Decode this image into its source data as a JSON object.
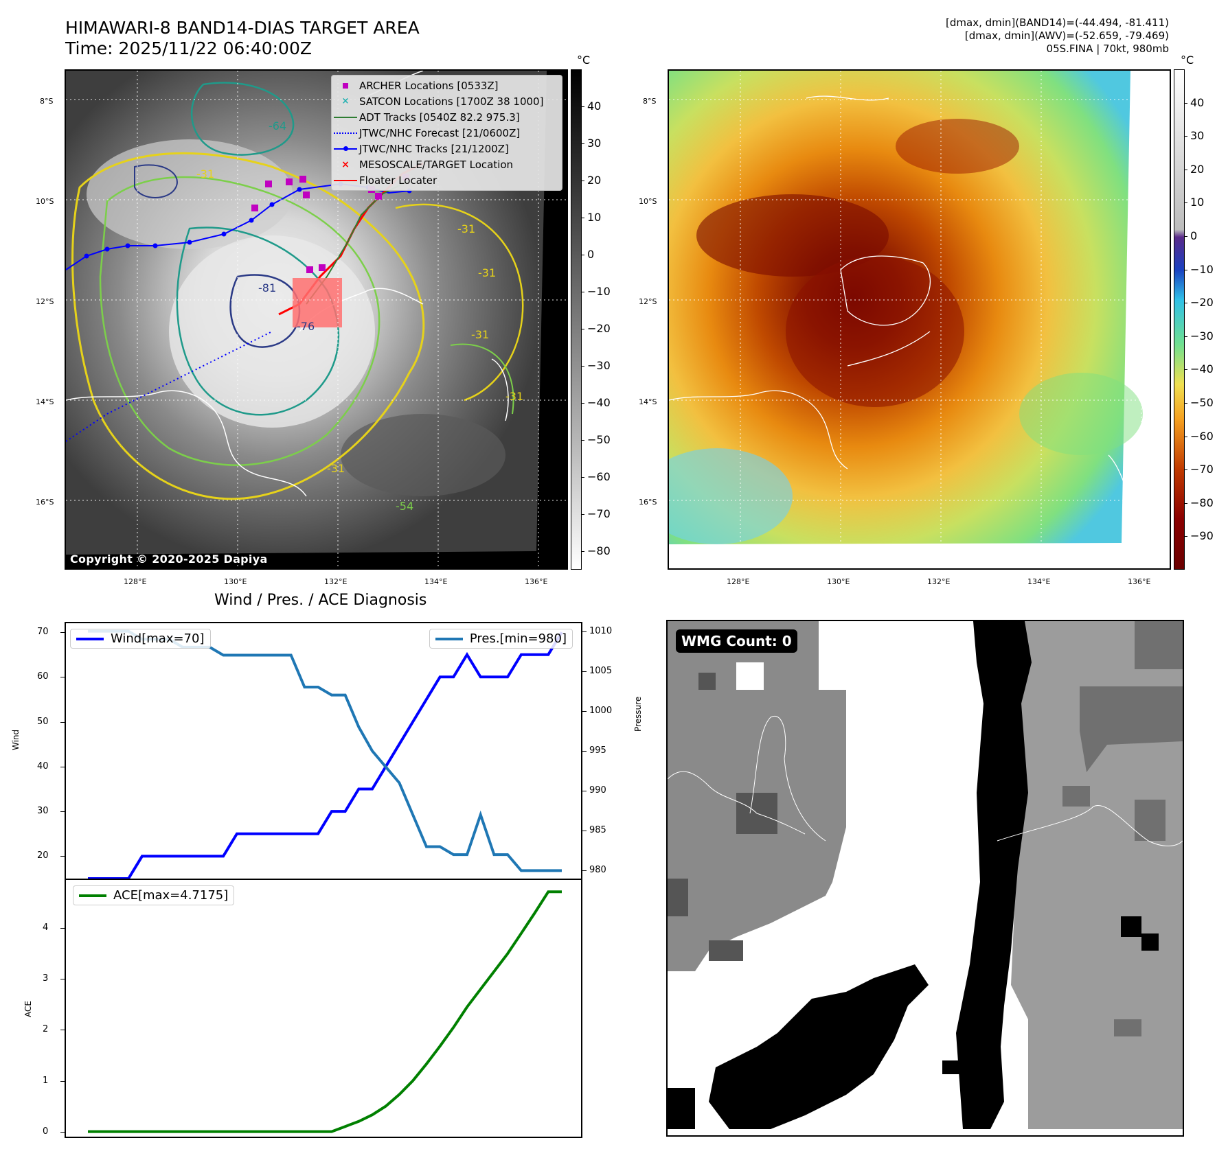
{
  "header": {
    "title_line1": "HIMAWARI-8 BAND14-DIAS TARGET AREA",
    "title_line2": "Time: 2025/11/22 06:40:00Z",
    "info_line1": "[dmax, dmin](BAND14)=(-44.494, -81.411)",
    "info_line2": "[dmax, dmin](AWV)=(-52.659, -79.469)",
    "info_line3": "05S.FINA | 70kt, 980mb"
  },
  "map_axes": {
    "lat_labels": [
      "8°S",
      "10°S",
      "12°S",
      "14°S",
      "16°S"
    ],
    "lon_labels": [
      "128°E",
      "130°E",
      "132°E",
      "134°E",
      "136°E"
    ]
  },
  "left_map": {
    "contour_labels": [
      "-64",
      "-31",
      "-81",
      "-76",
      "-31",
      "-31",
      "-54",
      "-31",
      "-31",
      "-31"
    ],
    "legend": [
      {
        "label": "ARCHER Locations [0533Z]",
        "color": "#c000c0",
        "symbol": "square"
      },
      {
        "label": "SATCON Locations [1700Z 38 1000]",
        "color": "#20b0b0",
        "symbol": "x"
      },
      {
        "label": "ADT Tracks [0540Z 82.2 975.3]",
        "color": "#2e7d32",
        "symbol": "line"
      },
      {
        "label": "JTWC/NHC Forecast [21/0600Z]",
        "color": "#0000ff",
        "symbol": "dotted"
      },
      {
        "label": "JTWC/NHC Tracks [21/1200Z]",
        "color": "#0000ff",
        "symbol": "dotline"
      },
      {
        "label": "MESOSCALE/TARGET Location",
        "color": "#ff0000",
        "symbol": "x"
      },
      {
        "label": "Floater Locater",
        "color": "#ff0000",
        "symbol": "line"
      }
    ],
    "copyright": "Copyright © 2020-2025 Dapiya",
    "colorbar": {
      "unit": "°C",
      "ticks": [
        "40",
        "30",
        "20",
        "10",
        "0",
        "−10",
        "−20",
        "−30",
        "−40",
        "−50",
        "−60",
        "−70",
        "−80"
      ],
      "range": [
        -85,
        50
      ]
    }
  },
  "right_map": {
    "colorbar": {
      "unit": "°C",
      "ticks": [
        "40",
        "30",
        "20",
        "10",
        "0",
        "−10",
        "−20",
        "−30",
        "−40",
        "−50",
        "−60",
        "−70",
        "−80",
        "−90"
      ],
      "range": [
        -100,
        50
      ]
    }
  },
  "chart_data": [
    {
      "type": "line",
      "title": "Wind / Pres. / ACE Diagnosis",
      "ylabel": "Wind",
      "y2label": "Pressure",
      "x": [
        0,
        1,
        2,
        3,
        4,
        5,
        6,
        7,
        8,
        9,
        10,
        11,
        12,
        13,
        14,
        15,
        16,
        17,
        18,
        19,
        20,
        21,
        22,
        23,
        24,
        25,
        26,
        27,
        28,
        29,
        30,
        31,
        32,
        33,
        34,
        35
      ],
      "series": [
        {
          "name": "Wind[max=70]",
          "axis": "left",
          "color": "#0000ff",
          "values": [
            15,
            15,
            15,
            15,
            20,
            20,
            20,
            20,
            20,
            20,
            20,
            25,
            25,
            25,
            25,
            25,
            25,
            25,
            30,
            30,
            35,
            35,
            40,
            45,
            50,
            55,
            60,
            60,
            65,
            60,
            60,
            60,
            65,
            65,
            65,
            70
          ]
        },
        {
          "name": "Pres.[min=980]",
          "axis": "right",
          "color": "#1f77b4",
          "values": [
            1010,
            1010,
            1010,
            1010,
            1009,
            1009,
            1009,
            1008,
            1008,
            1008,
            1007,
            1007,
            1007,
            1007,
            1007,
            1007,
            1003,
            1003,
            1002,
            1002,
            998,
            995,
            993,
            991,
            987,
            983,
            983,
            982,
            982,
            987,
            982,
            982,
            980,
            980,
            980,
            980
          ]
        }
      ],
      "ylim": [
        15,
        72
      ],
      "y2lim": [
        979,
        1011
      ],
      "yticks": [
        "70",
        "60",
        "50",
        "40",
        "30",
        "20"
      ],
      "y2ticks": [
        "1010",
        "1005",
        "1000",
        "995",
        "990",
        "985",
        "980"
      ]
    },
    {
      "type": "line",
      "ylabel": "ACE",
      "x": [
        0,
        1,
        2,
        3,
        4,
        5,
        6,
        7,
        8,
        9,
        10,
        11,
        12,
        13,
        14,
        15,
        16,
        17,
        18,
        19,
        20,
        21,
        22,
        23,
        24,
        25,
        26,
        27,
        28,
        29,
        30,
        31,
        32,
        33,
        34,
        35
      ],
      "series": [
        {
          "name": "ACE[max=4.7175]",
          "color": "#008000",
          "values": [
            0,
            0,
            0,
            0,
            0,
            0,
            0,
            0,
            0,
            0,
            0,
            0,
            0,
            0,
            0,
            0,
            0,
            0,
            0,
            0.1,
            0.2,
            0.33,
            0.5,
            0.73,
            1.0,
            1.33,
            1.68,
            2.05,
            2.45,
            2.8,
            3.15,
            3.5,
            3.9,
            4.3,
            4.7175,
            4.7175
          ]
        }
      ],
      "ylim": [
        -0.1,
        4.95
      ],
      "yticks": [
        "4",
        "3",
        "2",
        "1",
        "0"
      ]
    }
  ],
  "wmg_panel": {
    "label": "WMG Count: 0"
  }
}
